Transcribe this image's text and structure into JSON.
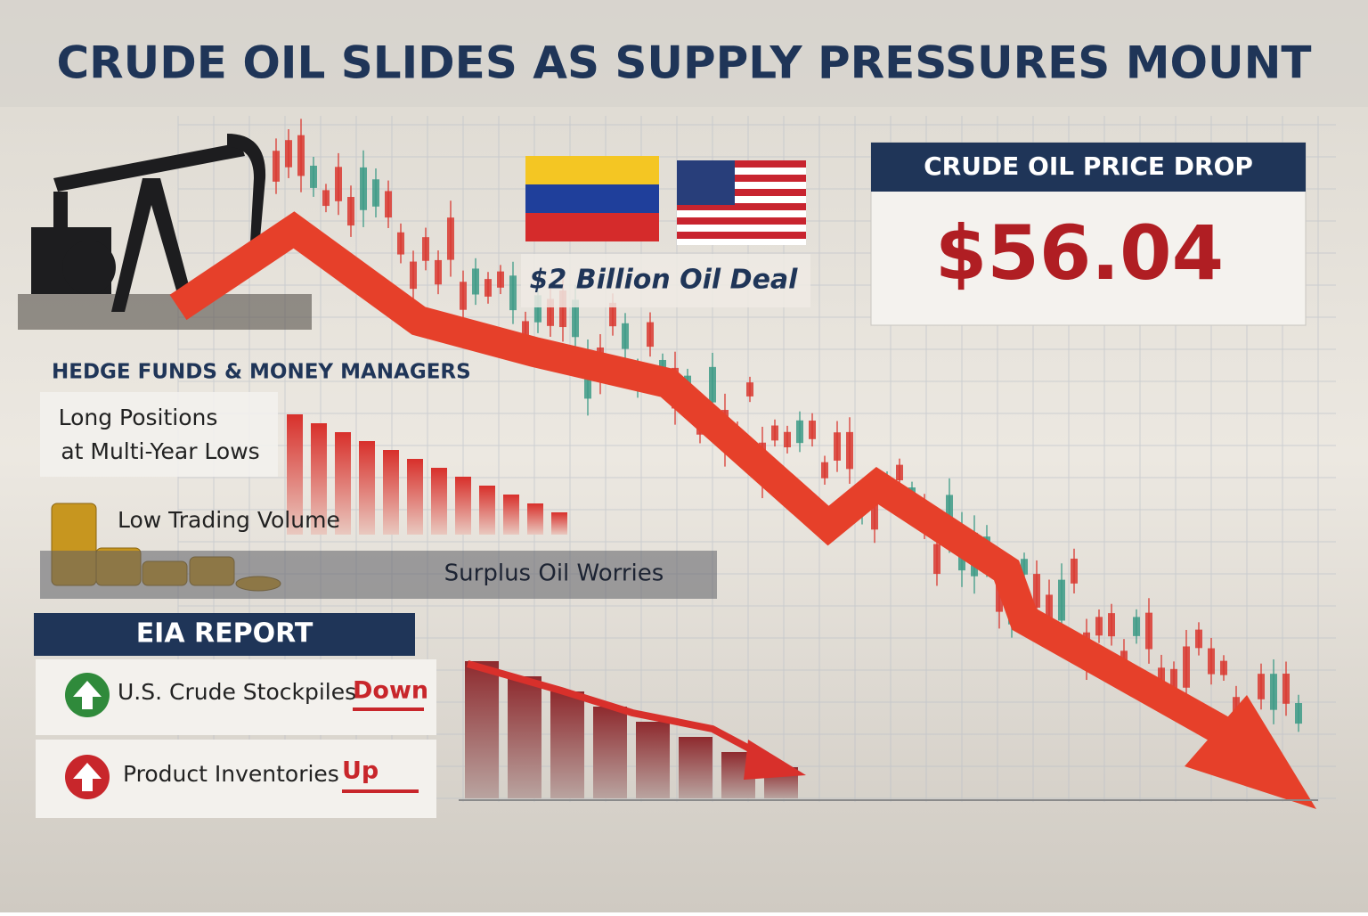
{
  "header": {
    "title": "CRUDE OIL SLIDES AS SUPPLY PRESSURES MOUNT"
  },
  "deal": {
    "label": "$2 Billion Oil Deal"
  },
  "price_box": {
    "title": "CRUDE OIL PRICE DROP",
    "price": "$56.04"
  },
  "hedge_funds": {
    "title": "HEDGE FUNDS & MONEY MANAGERS",
    "positions": [
      "Long Positions",
      "at Multi-Year Lows"
    ],
    "volume": "Low Trading Volume",
    "surplus": "Surplus Oil Worries"
  },
  "eia": {
    "title": "EIA REPORT",
    "items": [
      {
        "text": "U.S. Crude Stockpiles",
        "status": "Down"
      },
      {
        "text": "Product Inventories",
        "status": "Up"
      }
    ]
  }
}
